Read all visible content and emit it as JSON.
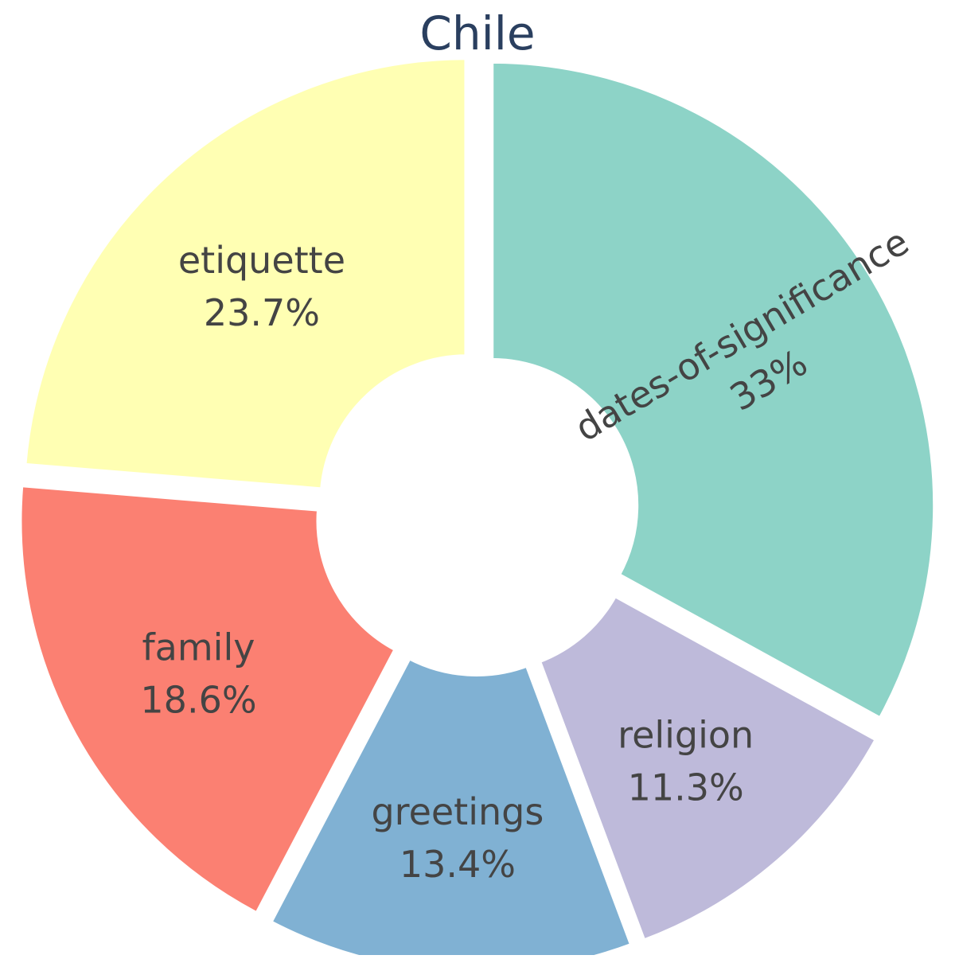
{
  "chart_data": {
    "type": "pie",
    "title": "Chile",
    "hole": true,
    "slices": [
      {
        "label": "dates-of-significance",
        "percent_text": "33%",
        "value": 33.0,
        "color": "#8dd3c7"
      },
      {
        "label": "religion",
        "percent_text": "11.3%",
        "value": 11.3,
        "color": "#bebada"
      },
      {
        "label": "greetings",
        "percent_text": "13.4%",
        "value": 13.4,
        "color": "#80b1d3"
      },
      {
        "label": "family",
        "percent_text": "18.6%",
        "value": 18.6,
        "color": "#fb8072"
      },
      {
        "label": "etiquette",
        "percent_text": "23.7%",
        "value": 23.7,
        "color": "#ffffb3"
      }
    ]
  }
}
